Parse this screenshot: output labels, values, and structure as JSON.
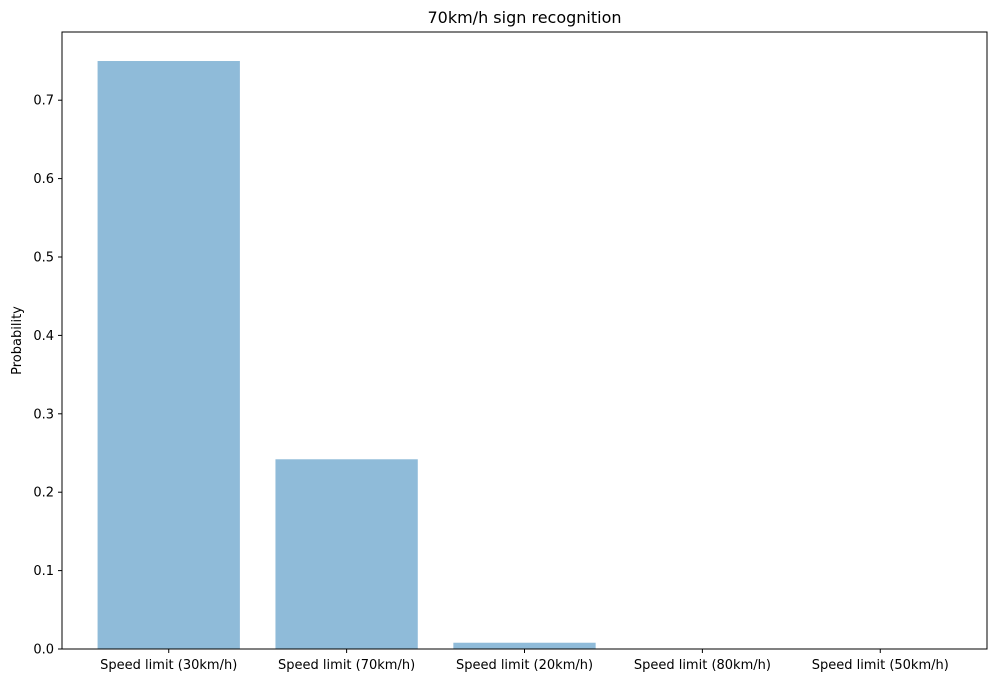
{
  "chart_data": {
    "type": "bar",
    "title": "70km/h sign recognition",
    "xlabel": "",
    "ylabel": "Probability",
    "categories": [
      "Speed limit (30km/h)",
      "Speed limit (70km/h)",
      "Speed limit (20km/h)",
      "Speed limit (80km/h)",
      "Speed limit (50km/h)"
    ],
    "values": [
      0.75,
      0.242,
      0.008,
      0.0,
      0.0
    ],
    "ylim": [
      0,
      0.787
    ],
    "yticks": [
      0.0,
      0.1,
      0.2,
      0.3,
      0.4,
      0.5,
      0.6,
      0.7
    ],
    "ytick_labels": [
      "0.0",
      "0.1",
      "0.2",
      "0.3",
      "0.4",
      "0.5",
      "0.6",
      "0.7"
    ],
    "bar_color": "#1f77b4",
    "bar_alpha": 0.5,
    "grid": false
  }
}
